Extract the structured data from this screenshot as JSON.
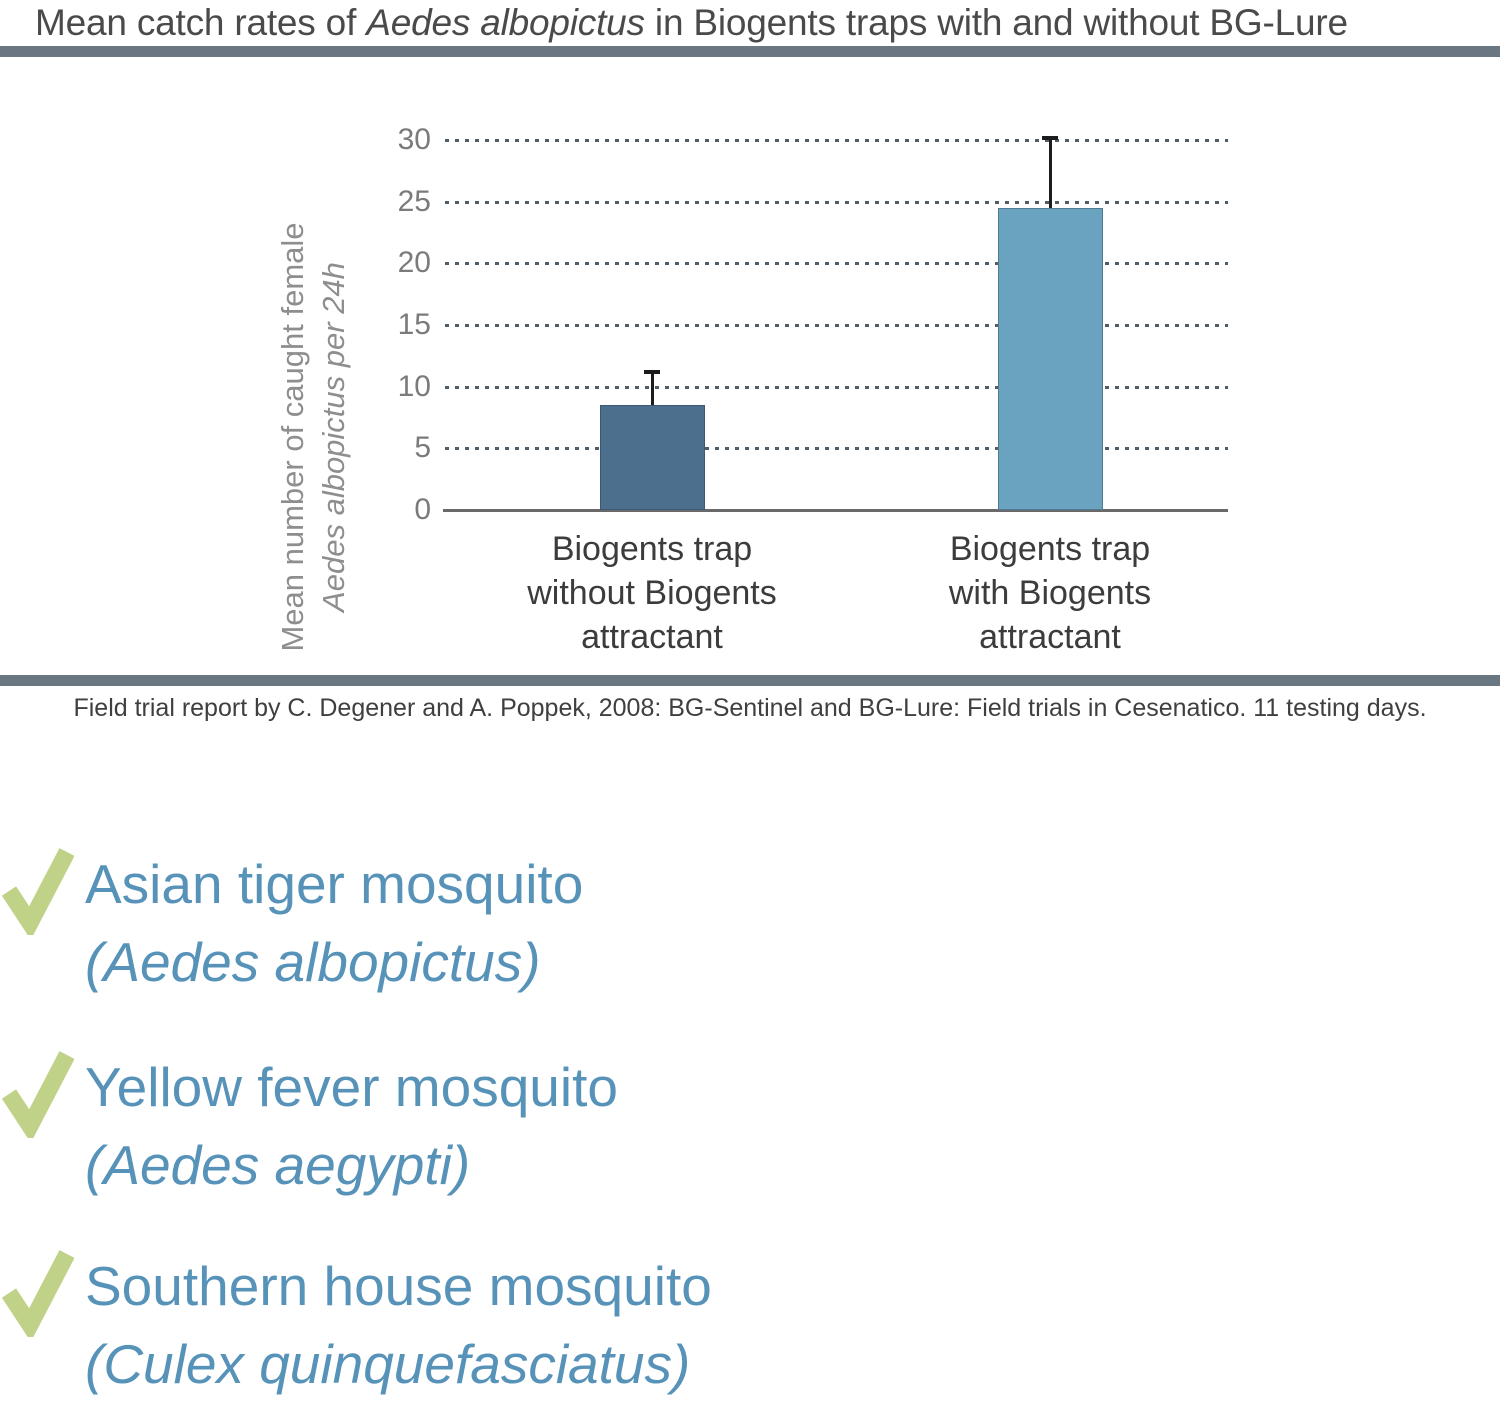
{
  "title": {
    "prefix": "Mean catch rates of ",
    "italic": "Aedes albopictus",
    "suffix": " in Biogents traps with and without BG-Lure"
  },
  "chart_data": {
    "type": "bar",
    "title": "Mean catch rates of Aedes albopictus in Biogents traps with and without BG-Lure",
    "ylabel_line1": "Mean number of caught female",
    "ylabel_line2": "Aedes albopictus per 24h",
    "categories": [
      "Biogents trap without Biogents attractant",
      "Biogents trap with Biogents attractant"
    ],
    "category_lines": [
      [
        "Biogents trap",
        "without Biogents",
        "attractant"
      ],
      [
        "Biogents trap",
        "with Biogents",
        "attractant"
      ]
    ],
    "values": [
      8.5,
      24.5
    ],
    "errors_plus": [
      2.7,
      5.7
    ],
    "bar_colors": [
      "#4c6f8d",
      "#6aa3bf"
    ],
    "ylim": [
      0,
      30
    ],
    "yticks": [
      0,
      5,
      10,
      15,
      20,
      25,
      30
    ],
    "grid": "horizontal-dashed",
    "legend": "none"
  },
  "citation": "Field trial report by C. Degener and A. Poppek, 2008: BG-Sentinel and BG-Lure: Field trials in Cesenatico. 11 testing days.",
  "checklist": {
    "items": [
      {
        "common": "Asian tiger mosquito",
        "latin": "(Aedes albopictus)"
      },
      {
        "common": "Yellow fever mosquito",
        "latin": "(Aedes aegypti)"
      },
      {
        "common": "Southern house mosquito",
        "latin": "(Culex quinquefasciatus)"
      }
    ]
  },
  "colors": {
    "text_blue": "#5792b9",
    "check_green": "#bfd287",
    "separator": "#6a7681",
    "bar_dark": "#4c6f8d",
    "bar_light": "#6aa3bf"
  }
}
